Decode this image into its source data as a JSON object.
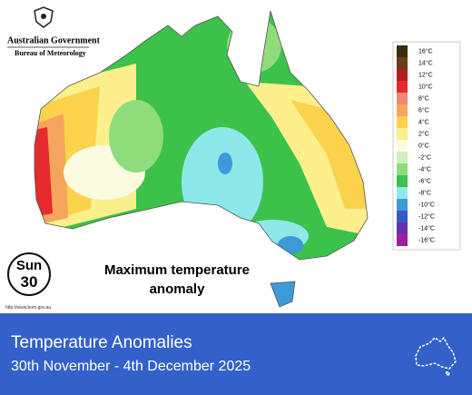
{
  "header": {
    "agency": "Australian Government",
    "bureau": "Bureau of Meteorology"
  },
  "legend": [
    {
      "label": "16°C",
      "color": "#3b2a10"
    },
    {
      "label": "14°C",
      "color": "#6e3a18"
    },
    {
      "label": "12°C",
      "color": "#b01e23"
    },
    {
      "label": "10°C",
      "color": "#e52a2e"
    },
    {
      "label": "8°C",
      "color": "#f0897a"
    },
    {
      "label": "6°C",
      "color": "#f5a55c"
    },
    {
      "label": "4°C",
      "color": "#fbd24c"
    },
    {
      "label": "2°C",
      "color": "#fdf08c"
    },
    {
      "label": "0°C",
      "color": "#fbfbe2"
    },
    {
      "label": "-2°C",
      "color": "#d2efbf"
    },
    {
      "label": "-4°C",
      "color": "#8fdc7c"
    },
    {
      "label": "-6°C",
      "color": "#3cc24a"
    },
    {
      "label": "-8°C",
      "color": "#8ee8ea"
    },
    {
      "label": "-10°C",
      "color": "#3a9bd8"
    },
    {
      "label": "-12°C",
      "color": "#3b57c8"
    },
    {
      "label": "-14°C",
      "color": "#6a2fb0"
    },
    {
      "label": "-16°C",
      "color": "#a0209a"
    }
  ],
  "day": {
    "weekday": "Sun",
    "date": "30"
  },
  "caption": "Maximum temperature anomaly",
  "source": "http://www.bom.gov.au",
  "banner": {
    "title": "Temperature Anomalies",
    "dates": "30th November - 4th December 2025"
  }
}
